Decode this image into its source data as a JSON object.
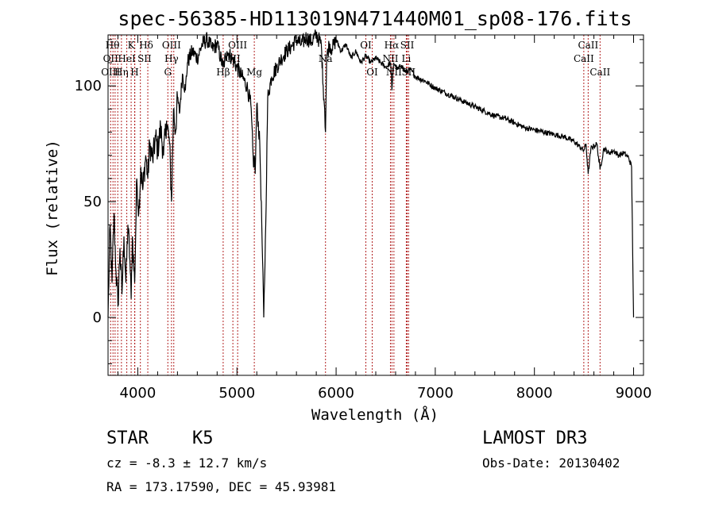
{
  "chart_data": {
    "type": "line",
    "title": "spec-56385-HD113019N471440M01_sp08-176.fits",
    "xlabel": "Wavelength (Å)",
    "ylabel": "Flux (relative)",
    "xlim": [
      3700,
      9100
    ],
    "ylim": [
      -25,
      122
    ],
    "x_ticks": [
      4000,
      5000,
      6000,
      7000,
      8000,
      9000
    ],
    "y_ticks": [
      0,
      50,
      100
    ],
    "line_color": "#000000",
    "marker_color": "#b22222",
    "series": [
      {
        "name": "flux",
        "x": [
          3700,
          3720,
          3740,
          3760,
          3780,
          3800,
          3820,
          3840,
          3860,
          3880,
          3900,
          3920,
          3933,
          3945,
          3968,
          3990,
          4010,
          4030,
          4050,
          4080,
          4101,
          4120,
          4150,
          4180,
          4200,
          4230,
          4260,
          4290,
          4320,
          4340,
          4360,
          4380,
          4400,
          4420,
          4450,
          4480,
          4500,
          4550,
          4600,
          4650,
          4700,
          4750,
          4800,
          4861,
          4900,
          4950,
          5000,
          5050,
          5100,
          5140,
          5167,
          5175,
          5184,
          5200,
          5230,
          5250,
          5270,
          5290,
          5310,
          5350,
          5400,
          5450,
          5500,
          5550,
          5600,
          5650,
          5700,
          5750,
          5800,
          5850,
          5870,
          5885,
          5893,
          5905,
          5930,
          5960,
          6000,
          6050,
          6100,
          6150,
          6200,
          6250,
          6300,
          6350,
          6400,
          6450,
          6500,
          6550,
          6563,
          6580,
          6620,
          6660,
          6700,
          6750,
          6800,
          6900,
          7000,
          7100,
          7200,
          7300,
          7400,
          7500,
          7600,
          7700,
          7800,
          7900,
          8000,
          8100,
          8200,
          8300,
          8400,
          8450,
          8498,
          8520,
          8542,
          8570,
          8600,
          8630,
          8662,
          8700,
          8750,
          8800,
          8850,
          8900,
          8950,
          8980,
          8990,
          9000
        ],
        "y": [
          0,
          40,
          15,
          45,
          20,
          5,
          30,
          10,
          35,
          15,
          40,
          25,
          8,
          35,
          15,
          60,
          45,
          65,
          55,
          70,
          60,
          75,
          68,
          78,
          72,
          82,
          70,
          85,
          75,
          50,
          90,
          80,
          95,
          88,
          105,
          98,
          110,
          115,
          112,
          118,
          120,
          116,
          118,
          108,
          115,
          112,
          108,
          104,
          100,
          92,
          65,
          70,
          62,
          92,
          75,
          40,
          0,
          40,
          95,
          104,
          108,
          112,
          115,
          117,
          120,
          118,
          121,
          119,
          122,
          118,
          100,
          90,
          80,
          112,
          118,
          116,
          120,
          115,
          118,
          112,
          115,
          110,
          113,
          110,
          112,
          110,
          108,
          110,
          98,
          110,
          107,
          109,
          106,
          107,
          104,
          102,
          99,
          97,
          95,
          93,
          91,
          89,
          87,
          86,
          84,
          82,
          81,
          80,
          79,
          78,
          76,
          74,
          72,
          75,
          62,
          73,
          74,
          75,
          64,
          73,
          71,
          72,
          70,
          71,
          69,
          65,
          30,
          0
        ]
      }
    ],
    "marked_lines": [
      3726,
      3750,
      3771,
      3798,
      3835,
      3889,
      3933,
      3968,
      3970,
      4026,
      4101,
      4303,
      4340,
      4363,
      4861,
      4959,
      5007,
      5175,
      5893,
      6300,
      6364,
      6548,
      6563,
      6583,
      6708,
      6717,
      6731,
      8498,
      8542,
      8662
    ],
    "line_labels": [
      {
        "text": "Hθ",
        "wl": 3745,
        "row": 0
      },
      {
        "text": "K",
        "wl": 3933,
        "row": 0
      },
      {
        "text": "Hδ",
        "wl": 4085,
        "row": 0
      },
      {
        "text": "OIII",
        "wl": 4340,
        "row": 0
      },
      {
        "text": "OIII",
        "wl": 5007,
        "row": 0
      },
      {
        "text": "OI",
        "wl": 6300,
        "row": 0
      },
      {
        "text": "Hα",
        "wl": 6560,
        "row": 0
      },
      {
        "text": "SII",
        "wl": 6717,
        "row": 0
      },
      {
        "text": "CaII",
        "wl": 8542,
        "row": 0
      },
      {
        "text": "OII",
        "wl": 3726,
        "row": 1
      },
      {
        "text": "HeI",
        "wl": 3889,
        "row": 1
      },
      {
        "text": "SII",
        "wl": 4068,
        "row": 1
      },
      {
        "text": "Hγ",
        "wl": 4340,
        "row": 1
      },
      {
        "text": "OII",
        "wl": 4959,
        "row": 1
      },
      {
        "text": "Na",
        "wl": 5893,
        "row": 1
      },
      {
        "text": "NII",
        "wl": 6548,
        "row": 1
      },
      {
        "text": "Li",
        "wl": 6708,
        "row": 1
      },
      {
        "text": "CaII",
        "wl": 8498,
        "row": 1
      },
      {
        "text": "OIII",
        "wl": 3726,
        "row": 2
      },
      {
        "text": "Hη",
        "wl": 3835,
        "row": 2
      },
      {
        "text": "H",
        "wl": 3968,
        "row": 2
      },
      {
        "text": "G",
        "wl": 4303,
        "row": 2
      },
      {
        "text": "Hβ",
        "wl": 4861,
        "row": 2
      },
      {
        "text": "Mg",
        "wl": 5175,
        "row": 2
      },
      {
        "text": "OI",
        "wl": 6364,
        "row": 2
      },
      {
        "text": "NII",
        "wl": 6583,
        "row": 2
      },
      {
        "text": "SII",
        "wl": 6731,
        "row": 2
      },
      {
        "text": "CaII",
        "wl": 8662,
        "row": 2
      }
    ]
  },
  "info": {
    "class_label": "STAR",
    "subclass": "K5",
    "redshift": "cz = -8.3 ± 12.7 km/s",
    "coords": "RA = 173.17590, DEC =  45.93981",
    "survey": "LAMOST DR3",
    "obs_date": "Obs-Date: 20130402"
  }
}
